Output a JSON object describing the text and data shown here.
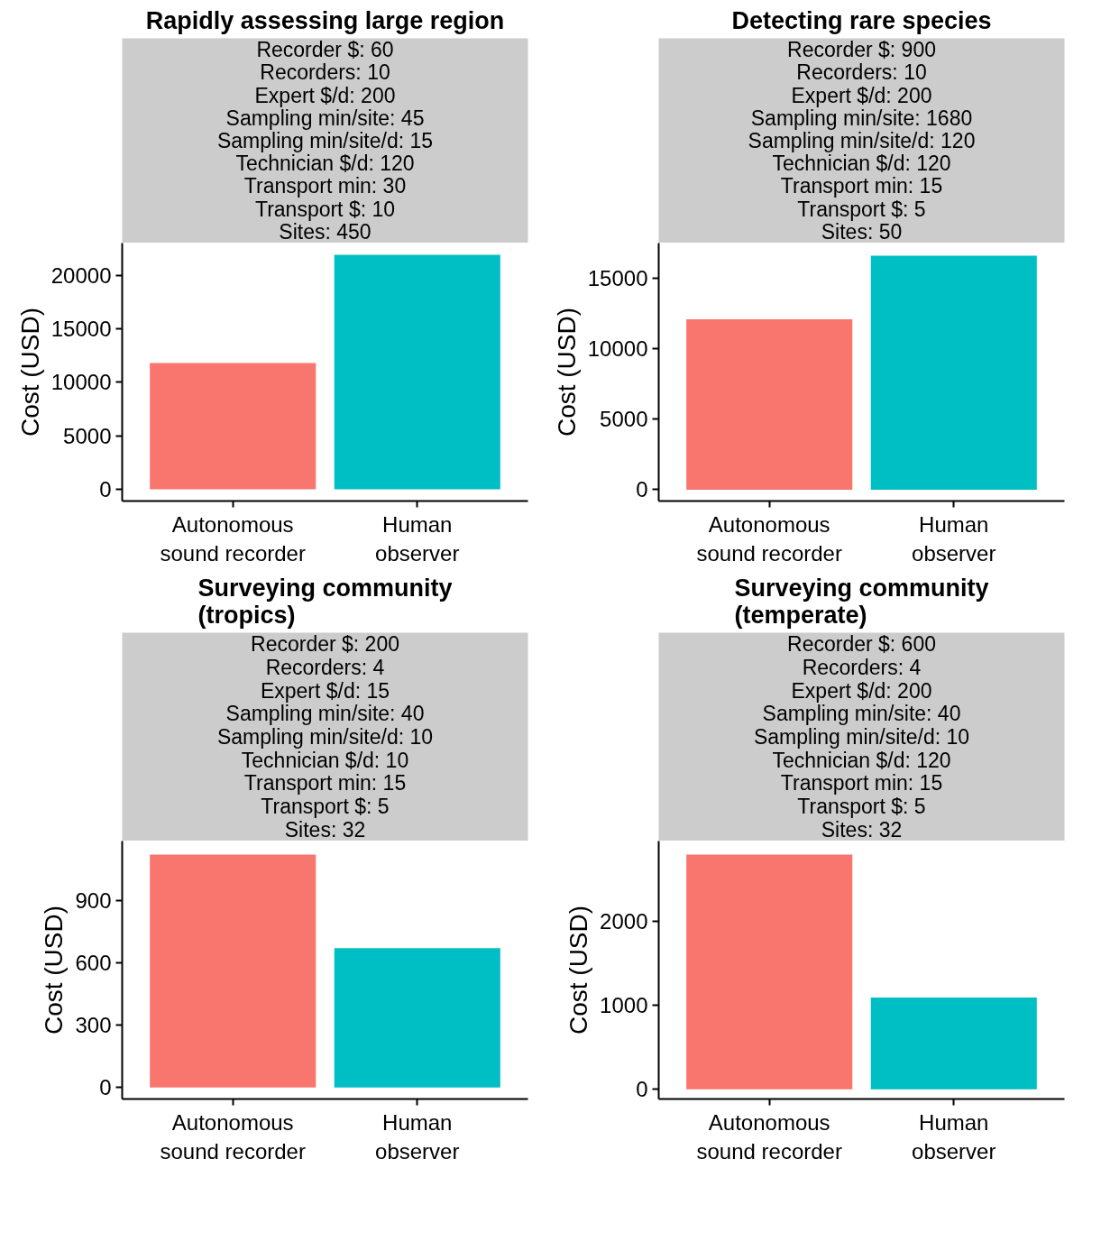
{
  "chart_data": [
    {
      "type": "bar",
      "title": "Rapidly assessing large region",
      "annotations": [
        "Recorder $: 60",
        "Recorders: 10",
        "Expert $/d: 200",
        "Sampling min/site: 45",
        "Sampling min/site/d: 15",
        "Technician $/d: 120",
        "Transport min: 30",
        "Transport $: 10",
        "Sites: 450"
      ],
      "categories": [
        "Autonomous\nsound recorder",
        "Human\nobserver"
      ],
      "values": [
        11800,
        21900
      ],
      "colors": [
        "#f8766d",
        "#00bfc4"
      ],
      "ylabel": "Cost (USD)",
      "ylim": [
        -1100,
        23000
      ],
      "yticks": [
        0,
        5000,
        10000,
        15000,
        20000
      ]
    },
    {
      "type": "bar",
      "title": "Detecting rare species",
      "annotations": [
        "Recorder $: 900",
        "Recorders: 10",
        "Expert $/d: 200",
        "Sampling min/site: 1680",
        "Sampling min/site/d: 120",
        "Technician $/d: 120",
        "Transport min: 15",
        "Transport $: 5",
        "Sites: 50"
      ],
      "categories": [
        "Autonomous\nsound recorder",
        "Human\nobserver"
      ],
      "values": [
        12100,
        16600
      ],
      "colors": [
        "#f8766d",
        "#00bfc4"
      ],
      "ylabel": "Cost (USD)",
      "ylim": [
        -800,
        17500
      ],
      "yticks": [
        0,
        5000,
        10000,
        15000
      ]
    },
    {
      "type": "bar",
      "title": "Surveying community\n(tropics)",
      "annotations": [
        "Recorder $: 200",
        "Recorders: 4",
        "Expert $/d: 15",
        "Sampling min/site: 40",
        "Sampling min/site/d: 10",
        "Technician $/d: 10",
        "Transport min: 15",
        "Transport $: 5",
        "Sites: 32"
      ],
      "categories": [
        "Autonomous\nsound recorder",
        "Human\nobserver"
      ],
      "values": [
        1120,
        670
      ],
      "colors": [
        "#f8766d",
        "#00bfc4"
      ],
      "ylabel": "Cost (USD)",
      "ylim": [
        -55,
        1185
      ],
      "yticks": [
        0,
        300,
        600,
        900
      ]
    },
    {
      "type": "bar",
      "title": "Surveying community\n(temperate)",
      "annotations": [
        "Recorder $: 600",
        "Recorders: 4",
        "Expert $/d: 200",
        "Sampling min/site: 40",
        "Sampling min/site/d: 10",
        "Technician $/d: 120",
        "Transport min: 15",
        "Transport $: 5",
        "Sites: 32"
      ],
      "categories": [
        "Autonomous\nsound recorder",
        "Human\nobserver"
      ],
      "values": [
        2790,
        1090
      ],
      "colors": [
        "#f8766d",
        "#00bfc4"
      ],
      "ylabel": "Cost (USD)",
      "ylim": [
        -115,
        2950
      ],
      "yticks": [
        0,
        1000,
        2000
      ]
    }
  ]
}
